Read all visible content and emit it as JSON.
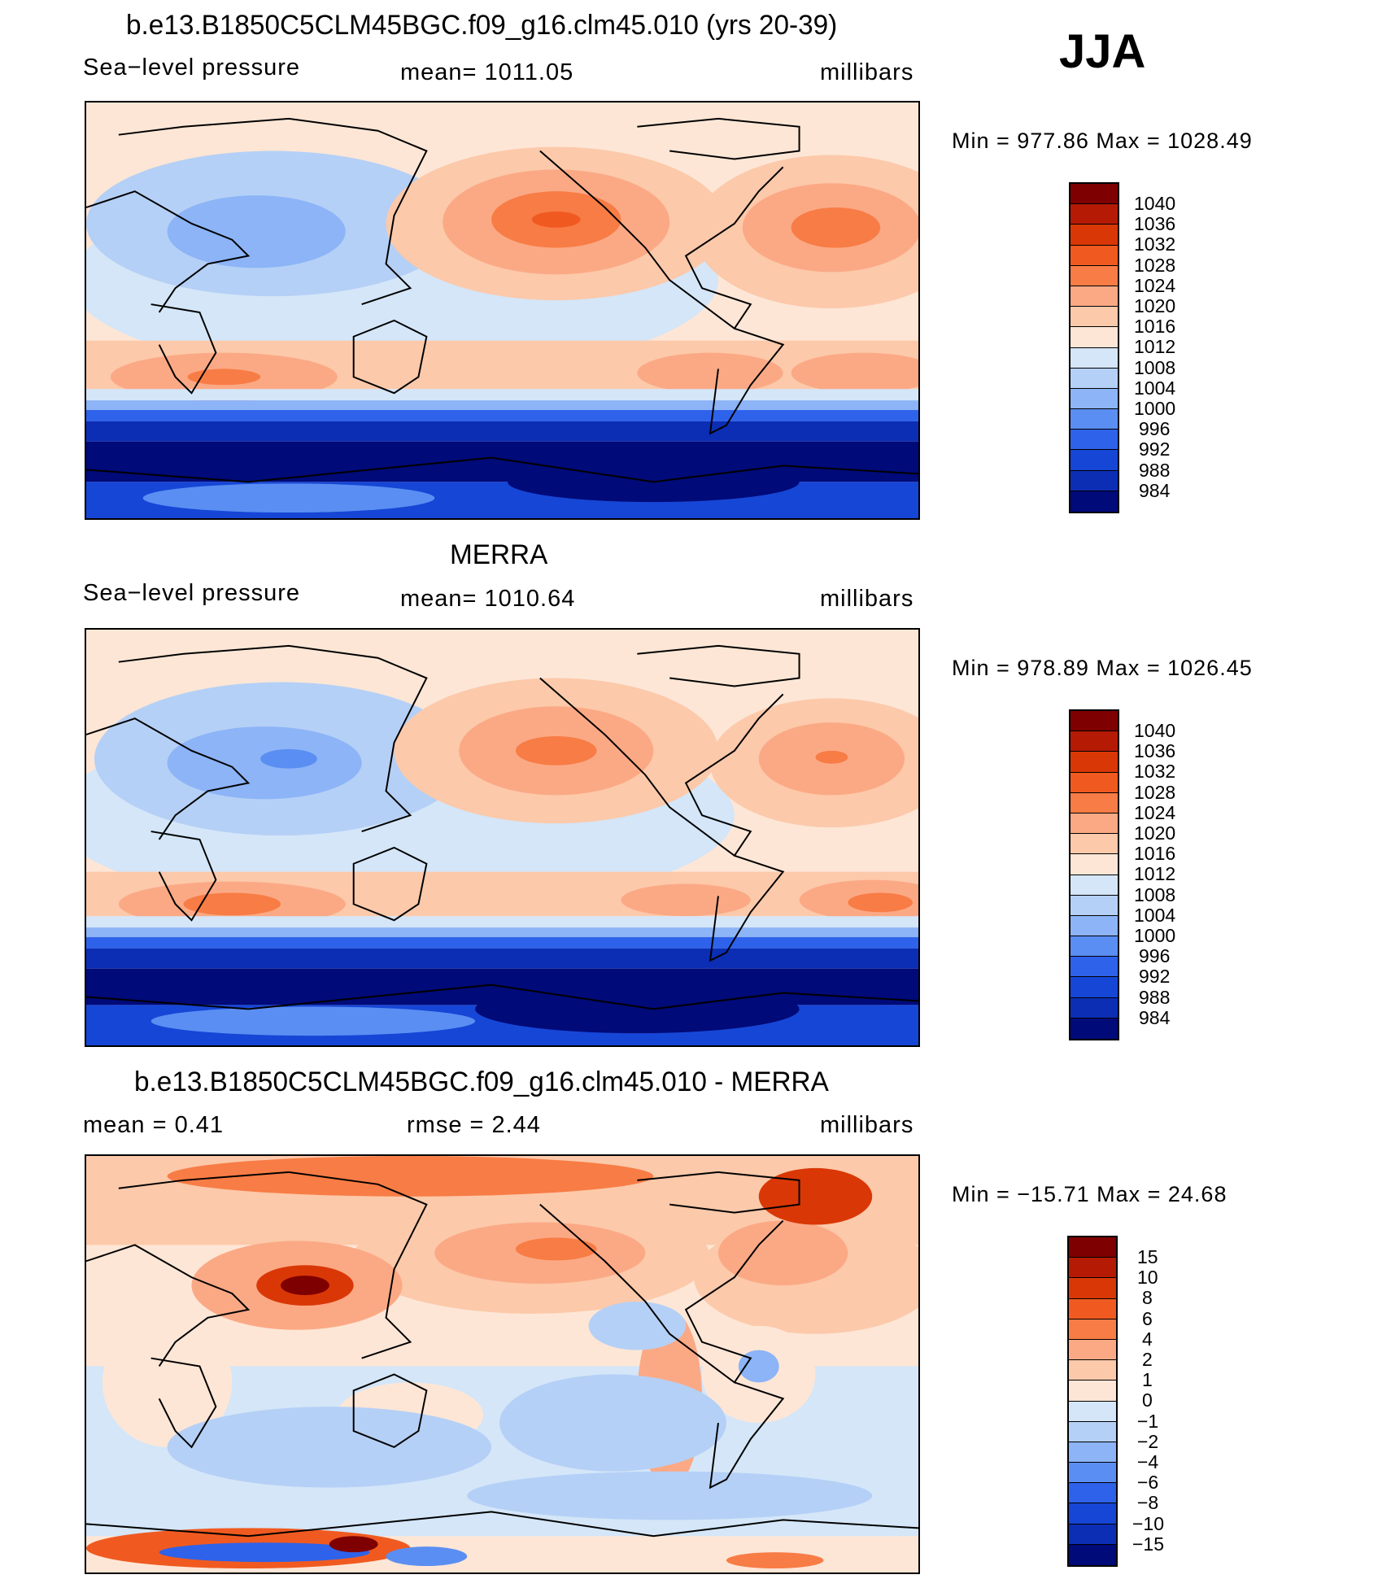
{
  "season": "JJA",
  "colors": {
    "pressure_scale": [
      "#7f0000",
      "#b51a05",
      "#d93806",
      "#f05a20",
      "#f87c45",
      "#fba985",
      "#fcc9aa",
      "#fde6d6",
      "#d4e6f8",
      "#b5d0f6",
      "#8cb4f7",
      "#5a8ef2",
      "#2e62ea",
      "#1646d6",
      "#0c2eb4",
      "#000a78"
    ],
    "diff_scale": [
      "#7f0000",
      "#b51a05",
      "#d93806",
      "#f05a20",
      "#f87c45",
      "#fba985",
      "#fcc9aa",
      "#fde6d6",
      "#d4e6f8",
      "#b5d0f6",
      "#8cb4f7",
      "#5a8ef2",
      "#2e62ea",
      "#1646d6",
      "#0c2eb4",
      "#000a78"
    ]
  },
  "panels": [
    {
      "title": "b.e13.B1850C5CLM45BGC.f09_g16.clm45.010 (yrs 20-39)",
      "left_label": "Sea−level pressure",
      "center_label": "mean=  1011.05",
      "units": "millibars",
      "minmax": "Min  =  977.86  Max  =  1028.49",
      "colorbar_labels": [
        "1040",
        "1036",
        "1032",
        "1028",
        "1024",
        "1020",
        "1016",
        "1012",
        "1008",
        "1004",
        "1000",
        "996",
        "992",
        "988",
        "984"
      ]
    },
    {
      "title": "MERRA",
      "left_label": "Sea−level pressure",
      "center_label": "mean=  1010.64",
      "units": "millibars",
      "minmax": "Min  =  978.89  Max  =  1026.45",
      "colorbar_labels": [
        "1040",
        "1036",
        "1032",
        "1028",
        "1024",
        "1020",
        "1016",
        "1012",
        "1008",
        "1004",
        "1000",
        "996",
        "992",
        "988",
        "984"
      ]
    },
    {
      "title": "b.e13.B1850C5CLM45BGC.f09_g16.clm45.010 - MERRA",
      "left_label": "mean  =     0.41",
      "center_label": "rmse  =     2.44",
      "units": "millibars",
      "minmax": "Min  =  −15.71  Max  =    24.68",
      "colorbar_labels": [
        "15",
        "10",
        "8",
        "6",
        "4",
        "2",
        "1",
        "0",
        "−1",
        "−2",
        "−4",
        "−6",
        "−8",
        "−10",
        "−15"
      ]
    }
  ]
}
